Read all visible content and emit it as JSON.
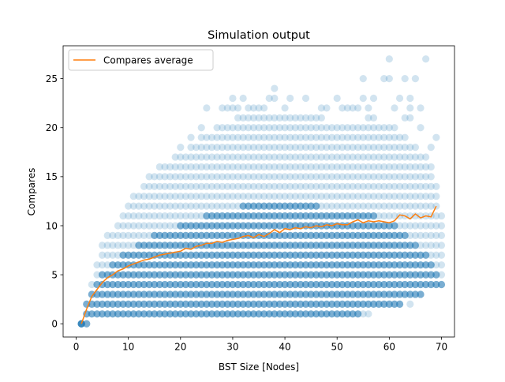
{
  "chart_data": {
    "type": "scatter",
    "title": "Simulation output",
    "xlabel": "BST Size [Nodes]",
    "ylabel": "Compares",
    "xlim": [
      -2.5,
      72.5
    ],
    "ylim": [
      -1.35,
      28.35
    ],
    "xticks": [
      0,
      10,
      20,
      30,
      40,
      50,
      60,
      70
    ],
    "yticks": [
      0,
      5,
      10,
      15,
      20,
      25
    ],
    "grid": false,
    "legend": {
      "placement": "upper-left",
      "entries": [
        "Compares average"
      ]
    },
    "colors": {
      "scatter": "#1f77b4",
      "average": "#ff7f0e"
    },
    "scatter": {
      "point_alpha": 0.2,
      "band_min": [
        [
          1,
          0
        ],
        [
          2,
          0
        ],
        [
          3,
          1
        ],
        [
          5,
          1
        ],
        [
          10,
          1
        ],
        [
          20,
          1
        ],
        [
          30,
          1
        ],
        [
          40,
          1
        ],
        [
          50,
          1
        ],
        [
          60,
          2
        ],
        [
          65,
          3
        ],
        [
          68,
          4
        ]
      ],
      "band_max": [
        [
          1,
          0
        ],
        [
          2,
          2
        ],
        [
          3,
          4
        ],
        [
          4,
          6
        ],
        [
          5,
          8
        ],
        [
          8,
          10
        ],
        [
          10,
          12
        ],
        [
          13,
          14
        ],
        [
          17,
          16
        ],
        [
          20,
          17
        ],
        [
          25,
          19
        ],
        [
          28,
          20
        ],
        [
          33,
          21
        ],
        [
          38,
          21
        ],
        [
          45,
          21
        ],
        [
          50,
          20
        ],
        [
          55,
          20
        ],
        [
          60,
          20
        ],
        [
          65,
          18
        ],
        [
          68,
          15
        ],
        [
          70,
          11
        ]
      ],
      "dense_max": [
        [
          1,
          0
        ],
        [
          2,
          2
        ],
        [
          3,
          3
        ],
        [
          4,
          4
        ],
        [
          6,
          5
        ],
        [
          8,
          6
        ],
        [
          10,
          7
        ],
        [
          13,
          8
        ],
        [
          17,
          9
        ],
        [
          22,
          10
        ],
        [
          28,
          11
        ],
        [
          35,
          12
        ],
        [
          42,
          12
        ],
        [
          50,
          11
        ],
        [
          55,
          11
        ],
        [
          60,
          10
        ],
        [
          65,
          8
        ],
        [
          68,
          6
        ],
        [
          70,
          4
        ]
      ],
      "outliers": [
        [
          10,
          1
        ],
        [
          19,
          1
        ],
        [
          21,
          1
        ],
        [
          22,
          1
        ],
        [
          23,
          1
        ],
        [
          24,
          1
        ],
        [
          25,
          1
        ],
        [
          26,
          1
        ],
        [
          28,
          1
        ],
        [
          29,
          1
        ],
        [
          30,
          1
        ],
        [
          31,
          1
        ],
        [
          33,
          1
        ],
        [
          35,
          2
        ],
        [
          38,
          2
        ],
        [
          41,
          2
        ],
        [
          46,
          2
        ],
        [
          54,
          2
        ],
        [
          55,
          1
        ],
        [
          56,
          1
        ],
        [
          59,
          3
        ],
        [
          62,
          2
        ],
        [
          64,
          2
        ],
        [
          64,
          4
        ],
        [
          66,
          4
        ],
        [
          68,
          5
        ],
        [
          69,
          9
        ],
        [
          70,
          9
        ],
        [
          67,
          12
        ],
        [
          68,
          13
        ],
        [
          69,
          14
        ],
        [
          68,
          16
        ],
        [
          67,
          17
        ],
        [
          68,
          18
        ],
        [
          69,
          19
        ],
        [
          20,
          18
        ],
        [
          22,
          19
        ],
        [
          24,
          20
        ],
        [
          25,
          22
        ],
        [
          28,
          22
        ],
        [
          29,
          22
        ],
        [
          30,
          22
        ],
        [
          30,
          23
        ],
        [
          31,
          22
        ],
        [
          32,
          23
        ],
        [
          33,
          22
        ],
        [
          34,
          22
        ],
        [
          35,
          22
        ],
        [
          36,
          22
        ],
        [
          37,
          23
        ],
        [
          38,
          24
        ],
        [
          38,
          23
        ],
        [
          40,
          22
        ],
        [
          41,
          23
        ],
        [
          44,
          23
        ],
        [
          47,
          22
        ],
        [
          48,
          22
        ],
        [
          50,
          23
        ],
        [
          51,
          22
        ],
        [
          52,
          22
        ],
        [
          53,
          22
        ],
        [
          54,
          22
        ],
        [
          55,
          23
        ],
        [
          56,
          22
        ],
        [
          57,
          23
        ],
        [
          55,
          25
        ],
        [
          57,
          23
        ],
        [
          59,
          25
        ],
        [
          60,
          25
        ],
        [
          61,
          22
        ],
        [
          62,
          23
        ],
        [
          63,
          21
        ],
        [
          64,
          23
        ],
        [
          65,
          25
        ],
        [
          64,
          22
        ],
        [
          66,
          22
        ],
        [
          66,
          20
        ],
        [
          60,
          27
        ],
        [
          67,
          27
        ],
        [
          63,
          25
        ],
        [
          57,
          21
        ],
        [
          56,
          21
        ],
        [
          55,
          20
        ],
        [
          64,
          21
        ]
      ]
    },
    "average": {
      "label": "Compares average",
      "x": [
        1,
        2,
        3,
        4,
        5,
        6,
        7,
        8,
        9,
        10,
        11,
        12,
        13,
        14,
        15,
        16,
        17,
        18,
        19,
        20,
        21,
        22,
        23,
        24,
        25,
        26,
        27,
        28,
        29,
        30,
        31,
        32,
        33,
        34,
        35,
        36,
        37,
        38,
        39,
        40,
        41,
        42,
        43,
        44,
        45,
        46,
        47,
        48,
        49,
        50,
        51,
        52,
        53,
        54,
        55,
        56,
        57,
        58,
        59,
        60,
        61,
        62,
        63,
        64,
        65,
        66,
        67,
        68,
        69
      ],
      "y": [
        0.0,
        1.5,
        2.8,
        3.5,
        4.2,
        4.7,
        5.0,
        5.4,
        5.6,
        5.9,
        6.1,
        6.3,
        6.5,
        6.6,
        6.8,
        7.0,
        7.1,
        7.2,
        7.3,
        7.4,
        7.7,
        7.6,
        7.9,
        8.0,
        8.2,
        8.2,
        8.4,
        8.3,
        8.5,
        8.6,
        8.7,
        8.9,
        9.0,
        8.8,
        9.1,
        8.9,
        9.2,
        9.6,
        9.3,
        9.7,
        9.6,
        9.8,
        9.7,
        9.9,
        9.8,
        10.0,
        9.9,
        10.1,
        10.0,
        10.2,
        10.1,
        10.1,
        10.4,
        10.6,
        10.3,
        10.5,
        10.4,
        10.5,
        10.4,
        10.3,
        10.5,
        11.1,
        11.0,
        10.7,
        11.2,
        10.8,
        11.0,
        10.9,
        12.0
      ]
    }
  }
}
